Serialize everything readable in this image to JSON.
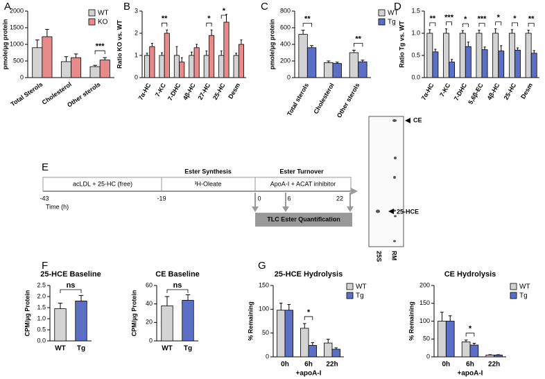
{
  "panel_labels": [
    "A",
    "B",
    "C",
    "D",
    "E",
    "F",
    "G"
  ],
  "chart_data": [
    {
      "type": "bar",
      "y_label": "pmole/µg protein",
      "categories": [
        "Total Sterols",
        "Cholesterol",
        "Other sterols"
      ],
      "series": [
        {
          "name": "WT",
          "color": "#d3d3d3",
          "values": [
            900,
            480,
            330
          ],
          "errors": [
            230,
            150,
            40
          ]
        },
        {
          "name": "KO",
          "color": "#e8898a",
          "values": [
            1230,
            600,
            530
          ],
          "errors": [
            220,
            110,
            70
          ]
        }
      ],
      "significance": [
        null,
        null,
        "***"
      ],
      "ylim": [
        0,
        2000
      ],
      "yticks": [
        0,
        500,
        1000,
        1500,
        2000
      ]
    },
    {
      "type": "bar",
      "y_label": "Ratio KO vs. WT",
      "categories": [
        "7α-HC",
        "7-KC",
        "7-DHC",
        "4β-HC",
        "27-HC",
        "25-HC",
        "Desm"
      ],
      "series": [
        {
          "name": "WT",
          "color": "#d3d3d3",
          "values": [
            1,
            1,
            1,
            1,
            1,
            1,
            1
          ],
          "errors": [
            0.1,
            0.12,
            0.4,
            0.15,
            0.2,
            0.2,
            0.1
          ]
        },
        {
          "name": "KO",
          "color": "#e8898a",
          "values": [
            1.4,
            2.0,
            0.7,
            1.35,
            1.9,
            2.5,
            1.5
          ],
          "errors": [
            0.15,
            0.15,
            0.2,
            0.15,
            0.25,
            0.35,
            0.2
          ]
        }
      ],
      "significance": [
        null,
        "**",
        null,
        null,
        "*",
        "*",
        null
      ],
      "ylim": [
        0,
        3
      ],
      "yticks": [
        0,
        1,
        2,
        3
      ]
    },
    {
      "type": "bar",
      "y_label": "pmole/µg protein",
      "categories": [
        "Total sterols",
        "Cholesterol",
        "Other sterols"
      ],
      "series": [
        {
          "name": "WT",
          "color": "#d3d3d3",
          "values": [
            520,
            180,
            300
          ],
          "errors": [
            50,
            20,
            30
          ]
        },
        {
          "name": "Tg",
          "color": "#5b6fc4",
          "values": [
            360,
            170,
            190
          ],
          "errors": [
            25,
            15,
            20
          ]
        }
      ],
      "significance": [
        "**",
        null,
        "**"
      ],
      "ylim": [
        0,
        800
      ],
      "yticks": [
        0,
        200,
        400,
        600,
        800
      ]
    },
    {
      "type": "bar",
      "y_label": "Ratio Tg vs. WT",
      "categories": [
        "7α-HC",
        "7-KC",
        "7-DHC",
        "5,6β-EC",
        "4β-HC",
        "25-HC",
        "Desm"
      ],
      "series": [
        {
          "name": "WT",
          "color": "#d3d3d3",
          "values": [
            1,
            1,
            1,
            1,
            1,
            1,
            1
          ],
          "errors": [
            0.08,
            0.1,
            0.06,
            0.07,
            0.1,
            0.08,
            0.07
          ]
        },
        {
          "name": "Tg",
          "color": "#5b6fc4",
          "values": [
            0.58,
            0.35,
            0.7,
            0.63,
            0.6,
            0.62,
            0.55
          ],
          "errors": [
            0.06,
            0.06,
            0.1,
            0.06,
            0.12,
            0.05,
            0.06
          ]
        }
      ],
      "significance": [
        "**",
        "***",
        "*",
        "***",
        "*",
        "*",
        "**"
      ],
      "ylim": [
        0,
        1.5
      ],
      "yticks": [
        {
          "value": 0,
          "label": "0.0"
        },
        {
          "value": 0.5,
          "label": "0.5"
        },
        {
          "value": 1,
          "label": "1.0"
        },
        {
          "value": 1.5,
          "label": "1.5"
        }
      ]
    },
    {
      "type": "bar",
      "title": "25-HCE Baseline",
      "y_label": "CPM/µg Protein",
      "categories": [
        "WT",
        "Tg"
      ],
      "values": [
        1.45,
        1.8
      ],
      "errors": [
        0.25,
        0.25
      ],
      "colors": [
        "#d3d3d3",
        "#5b6fc4"
      ],
      "significance": "ns",
      "ylim": [
        0,
        2.5
      ],
      "yticks": [
        {
          "value": 0,
          "label": "0.0"
        },
        {
          "value": 0.5,
          "label": "0.5"
        },
        {
          "value": 1,
          "label": "1.0"
        },
        {
          "value": 1.5,
          "label": "1.5"
        },
        {
          "value": 2,
          "label": "2.0"
        },
        {
          "value": 2.5,
          "label": "2.5"
        }
      ]
    },
    {
      "type": "bar",
      "title": "CE Baseline",
      "y_label": "CPM/µg Protein",
      "categories": [
        "WT",
        "Tg"
      ],
      "values": [
        38,
        44
      ],
      "errors": [
        10,
        6
      ],
      "colors": [
        "#d3d3d3",
        "#5b6fc4"
      ],
      "significance": "ns",
      "ylim": [
        0,
        60
      ],
      "yticks": [
        0,
        20,
        40,
        60
      ]
    },
    {
      "type": "bar",
      "title": "25-HCE Hydrolysis",
      "y_label": "% Remaining",
      "categories": [
        "0h",
        "6h",
        "22h"
      ],
      "category_notes": [
        null,
        "+apoA-I",
        null
      ],
      "series": [
        {
          "name": "WT",
          "color": "#d3d3d3",
          "values": [
            98,
            60,
            29
          ],
          "errors": [
            15,
            10,
            8
          ]
        },
        {
          "name": "Tg",
          "color": "#5b6fc4",
          "values": [
            98,
            24,
            16
          ],
          "errors": [
            12,
            6,
            3
          ]
        }
      ],
      "significance": [
        null,
        "*",
        null
      ],
      "ylim": [
        0,
        150
      ],
      "yticks": [
        0,
        50,
        100,
        150
      ]
    },
    {
      "type": "bar",
      "title": "CE Hydrolysis",
      "y_label": "% Remaining",
      "categories": [
        "0h",
        "6h",
        "22h"
      ],
      "category_notes": [
        null,
        "+apoA-I",
        null
      ],
      "series": [
        {
          "name": "WT",
          "color": "#d3d3d3",
          "values": [
            100,
            42,
            5
          ],
          "errors": [
            25,
            5,
            1
          ]
        },
        {
          "name": "Tg",
          "color": "#5b6fc4",
          "values": [
            100,
            33,
            5
          ],
          "errors": [
            15,
            5,
            1
          ]
        }
      ],
      "significance": [
        null,
        "*",
        null
      ],
      "ylim": [
        0,
        200
      ],
      "yticks": [
        0,
        50,
        100,
        150,
        200
      ]
    }
  ],
  "timeline": {
    "headers": [
      "Ester Synthesis",
      "Ester Turnover"
    ],
    "phases": [
      "acLDL + 25-HC (free)",
      "³H-Oleate",
      "ApoA-I + ACAT inhibitor"
    ],
    "times": [
      -43,
      -19,
      0,
      6,
      22
    ],
    "time_label": "Time (h)",
    "quantification": "TLC Ester Quantification"
  },
  "tlc": {
    "bands": [
      "CE",
      "25-HCE"
    ],
    "lanes": [
      "25S",
      "RM"
    ]
  }
}
